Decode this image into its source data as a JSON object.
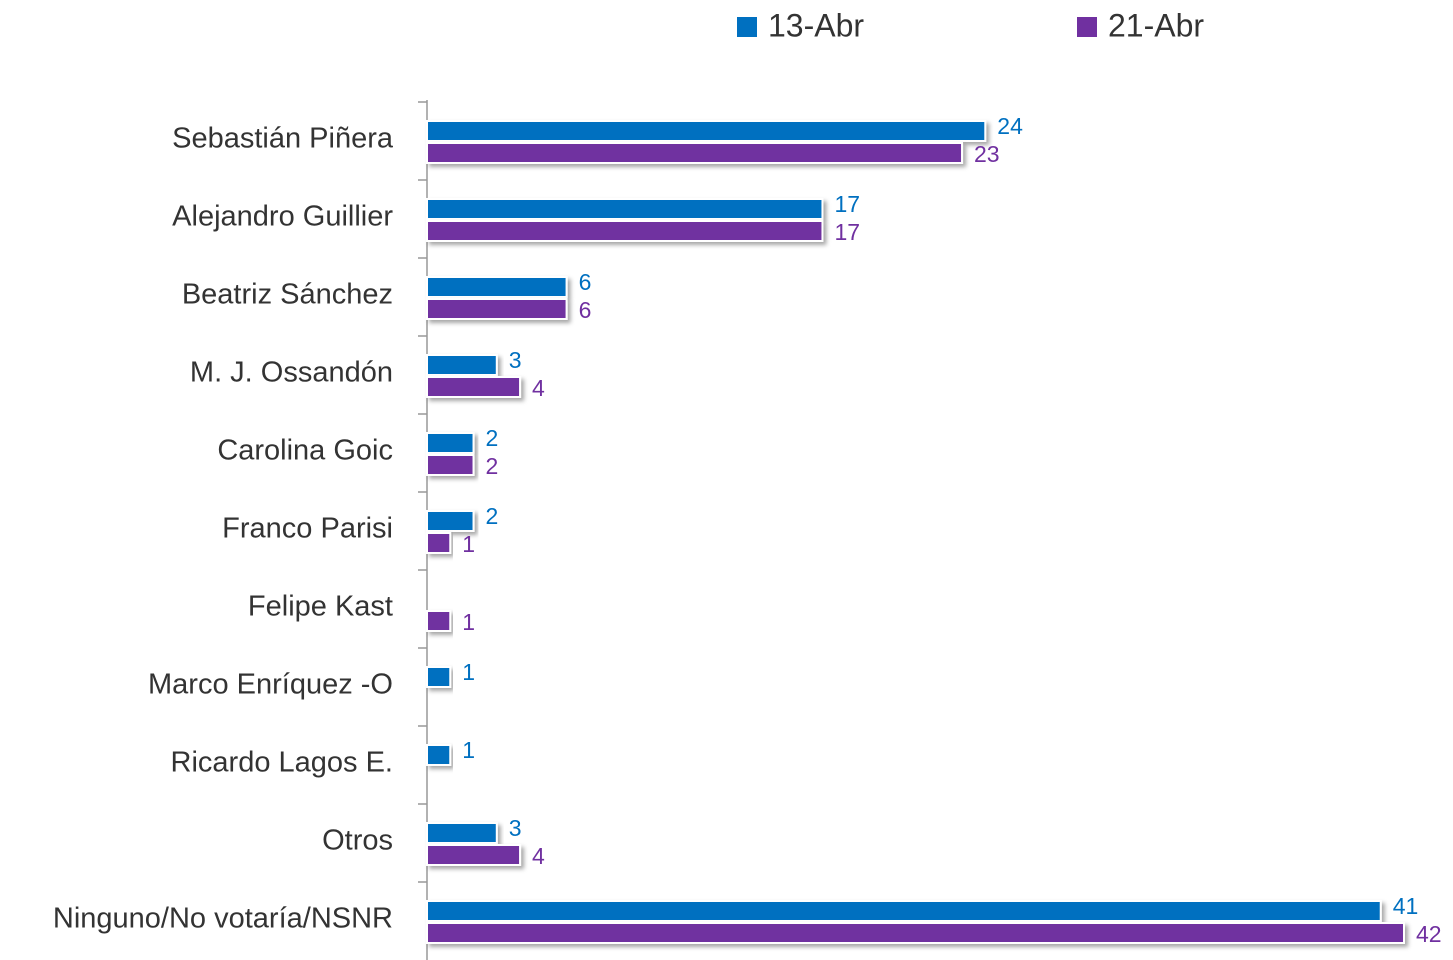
{
  "chart_data": {
    "type": "bar",
    "orientation": "horizontal",
    "categories": [
      "Sebastián Piñera",
      "Alejandro  Guillier",
      "Beatriz Sánchez",
      "M. J. Ossandón",
      "Carolina Goic",
      "Franco Parisi",
      "Felipe Kast",
      "Marco Enríquez -O",
      "Ricardo Lagos E.",
      "Otros",
      "Ninguno/No votaría/NSNR"
    ],
    "series": [
      {
        "name": "13-Abr",
        "color": "#0070c0",
        "values": [
          24,
          17,
          6,
          3,
          2,
          2,
          null,
          1,
          1,
          3,
          41
        ]
      },
      {
        "name": "21-Abr",
        "color": "#7030a0",
        "values": [
          23,
          17,
          6,
          4,
          2,
          1,
          1,
          null,
          null,
          4,
          42
        ]
      }
    ],
    "legend": "top"
  }
}
